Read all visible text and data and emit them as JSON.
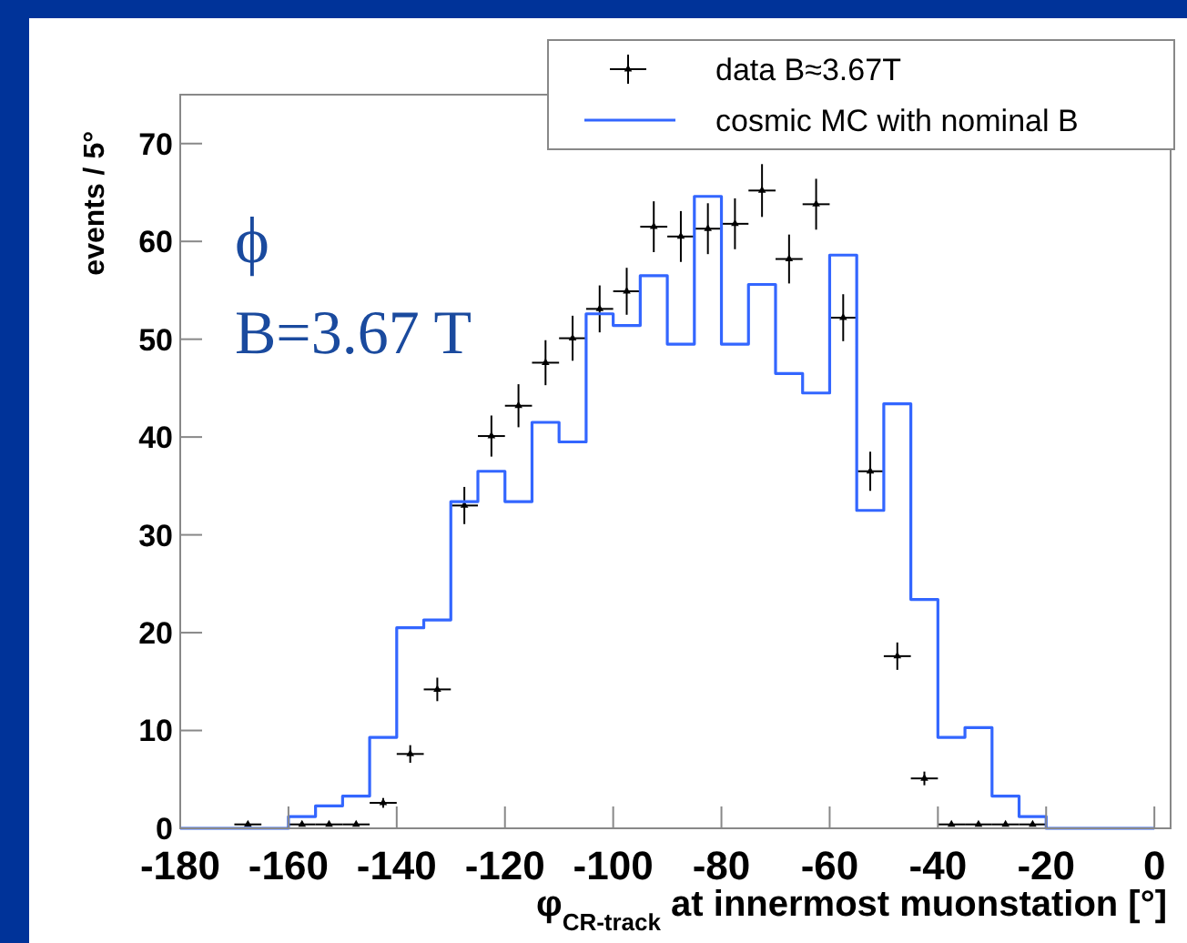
{
  "chart_data": {
    "type": "histogram",
    "xlabel": "φ$_{CR-track}$ at innermost muonstation [°]",
    "ylabel": "events / 5°",
    "xlim": [
      -180,
      3
    ],
    "ylim": [
      0,
      75
    ],
    "xticks": [
      -180,
      -160,
      -140,
      -120,
      -100,
      -80,
      -60,
      -40,
      -20,
      0
    ],
    "yticks": [
      0,
      10,
      20,
      30,
      40,
      50,
      60,
      70
    ],
    "grid": false,
    "legend": "top right",
    "annotations": [
      "ϕ",
      "B=3.67 T"
    ],
    "series": [
      {
        "name": "data B≈3.67T",
        "type": "scatter",
        "color": "#000000",
        "marker": "triangle",
        "x": [
          -167.5,
          -157.5,
          -152.5,
          -147.5,
          -142.5,
          -137.5,
          -132.5,
          -127.5,
          -122.5,
          -117.5,
          -112.5,
          -107.5,
          -102.5,
          -97.5,
          -92.5,
          -87.5,
          -82.5,
          -77.5,
          -72.5,
          -67.5,
          -62.5,
          -57.5,
          -52.5,
          -47.5,
          -42.5,
          -37.5,
          -32.5,
          -27.5,
          -22.5
        ],
        "values": [
          0.4,
          0.4,
          0.4,
          0.4,
          2.6,
          7.6,
          14.2,
          33,
          40.1,
          43.2,
          47.6,
          50.1,
          53.1,
          54.9,
          61.5,
          60.5,
          61.3,
          61.8,
          65.2,
          58.2,
          63.8,
          52.2,
          36.5,
          17.6,
          5.1,
          0.4,
          0.4,
          0.4,
          0.4
        ],
        "errors": [
          0.2,
          0.2,
          0.2,
          0.2,
          0.5,
          0.9,
          1.2,
          1.9,
          2.1,
          2.2,
          2.3,
          2.3,
          2.4,
          2.4,
          2.6,
          2.6,
          2.6,
          2.6,
          2.7,
          2.5,
          2.6,
          2.4,
          2.0,
          1.4,
          0.7,
          0.2,
          0.2,
          0.2,
          0.2
        ],
        "xerrors": [
          2.5,
          2.5,
          2.5,
          2.5,
          2.5,
          2.5,
          2.5,
          2.5,
          2.5,
          2.5,
          2.5,
          2.5,
          2.5,
          2.5,
          2.5,
          2.5,
          2.5,
          2.5,
          2.5,
          2.5,
          2.5,
          2.5,
          2.5,
          2.5,
          2.5,
          2.5,
          2.5,
          2.5,
          2.5
        ]
      },
      {
        "name": "cosmic MC with nominal B",
        "color": "#3366ff",
        "bins": [
          -180,
          -175,
          -170,
          -165,
          -160,
          -155,
          -150,
          -145,
          -140,
          -135,
          -130,
          -125,
          -120,
          -115,
          -110,
          -105,
          -100,
          -95,
          -90,
          -85,
          -80,
          -75,
          -70,
          -65,
          -60,
          -55,
          -50,
          -45,
          -40,
          -35,
          -30,
          -25,
          -20,
          -15,
          -10,
          -5,
          0
        ],
        "values": [
          0,
          0,
          0,
          0,
          1.2,
          2.3,
          3.3,
          9.3,
          20.5,
          21.3,
          33.4,
          36.5,
          33.4,
          41.5,
          39.5,
          52.6,
          51.4,
          56.5,
          49.5,
          64.6,
          49.5,
          55.6,
          46.5,
          44.5,
          58.6,
          32.5,
          43.4,
          23.4,
          9.3,
          10.3,
          3.3,
          1.2,
          0,
          0,
          0,
          0
        ]
      }
    ]
  }
}
